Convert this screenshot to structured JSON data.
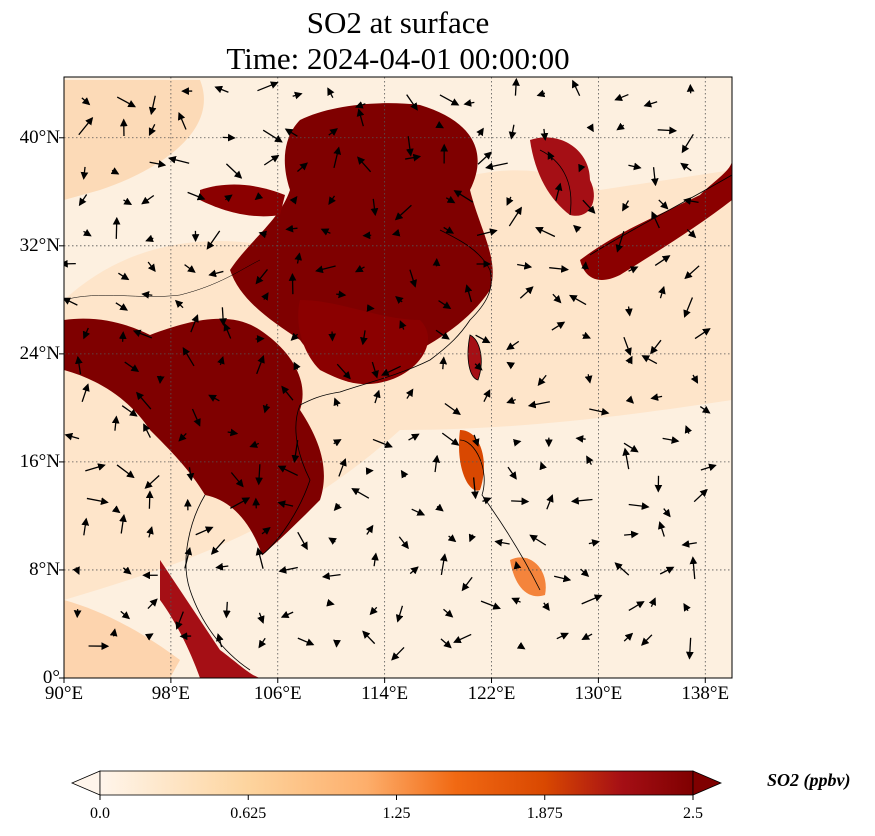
{
  "title": {
    "line1": "SO2 at surface",
    "line2": "Time: 2024-04-01 00:00:00"
  },
  "map": {
    "lon_range": [
      90,
      140
    ],
    "lat_range": [
      0,
      44.5
    ],
    "x_ticks": [
      "90°E",
      "98°E",
      "106°E",
      "114°E",
      "122°E",
      "130°E",
      "138°E"
    ],
    "x_tick_values": [
      90,
      98,
      106,
      114,
      122,
      130,
      138
    ],
    "y_ticks": [
      "0°",
      "8°N",
      "16°N",
      "24°N",
      "32°N",
      "40°N"
    ],
    "y_tick_values": [
      0,
      8,
      16,
      24,
      32,
      40
    ],
    "gridlines": "dotted",
    "field": "SO2 concentration with wind vectors"
  },
  "colorbar": {
    "label": "SO2 (ppbv)",
    "ticks": [
      "0.0",
      "0.625",
      "1.25",
      "1.875",
      "2.5"
    ],
    "tick_values": [
      0,
      0.625,
      1.25,
      1.875,
      2.5
    ],
    "range": [
      0,
      2.5
    ],
    "extend": "both",
    "colormap": [
      "#fff5eb",
      "#fdd49e",
      "#fdae6b",
      "#f16913",
      "#d94801",
      "#a50f15",
      "#7f0000"
    ]
  }
}
